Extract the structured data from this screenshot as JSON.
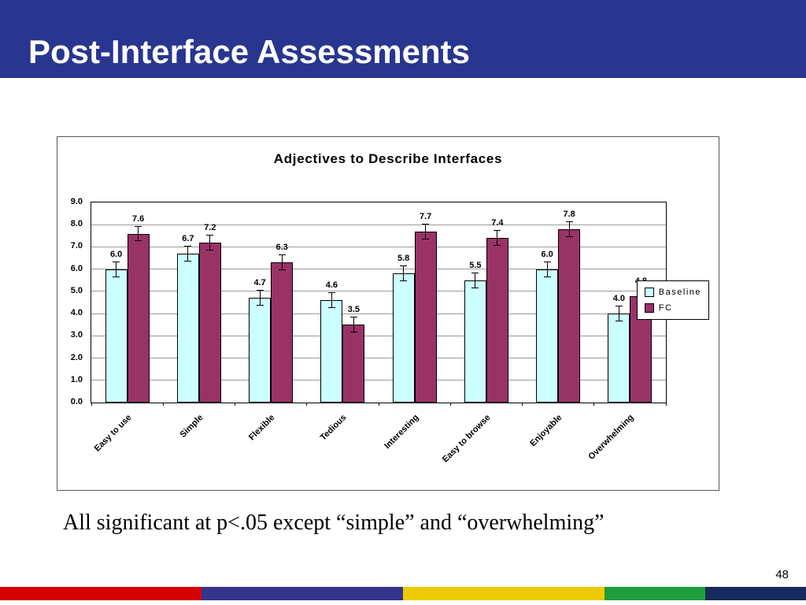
{
  "slide": {
    "title": "Post-Interface Assessments",
    "caption": "All significant at p<.05 except “simple” and “overwhelming”",
    "page_number": "48"
  },
  "colors": {
    "header_bg": "#28368f",
    "slide_bg": "#ffffff",
    "baseline_fill": "#ccffff",
    "fc_fill": "#993366"
  },
  "footer": {
    "segments": [
      {
        "color": "#d60000",
        "width_pct": 25
      },
      {
        "color": "#34348c",
        "width_pct": 25
      },
      {
        "color": "#eecb00",
        "width_pct": 25
      },
      {
        "color": "#1e9e3a",
        "width_pct": 12.5
      },
      {
        "color": "#172a5e",
        "width_pct": 12.5
      }
    ]
  },
  "chart_data": {
    "type": "bar",
    "title": "Adjectives to Describe Interfaces",
    "categories": [
      "Easy to use",
      "Simple",
      "Flexible",
      "Tedious",
      "Interesting",
      "Easy to browse",
      "Enjoyable",
      "Overwhelming"
    ],
    "series": [
      {
        "name": "Baseline",
        "color": "#ccffff",
        "values": [
          6.0,
          6.7,
          4.7,
          4.6,
          5.8,
          5.5,
          6.0,
          4.0
        ]
      },
      {
        "name": "FC",
        "color": "#993366",
        "values": [
          7.6,
          7.2,
          6.3,
          3.5,
          7.7,
          7.4,
          7.8,
          4.8
        ]
      }
    ],
    "ylim": [
      0,
      9
    ],
    "ytick_step": 1,
    "error_bar": 0.35,
    "grid": true,
    "legend_position": "right"
  }
}
